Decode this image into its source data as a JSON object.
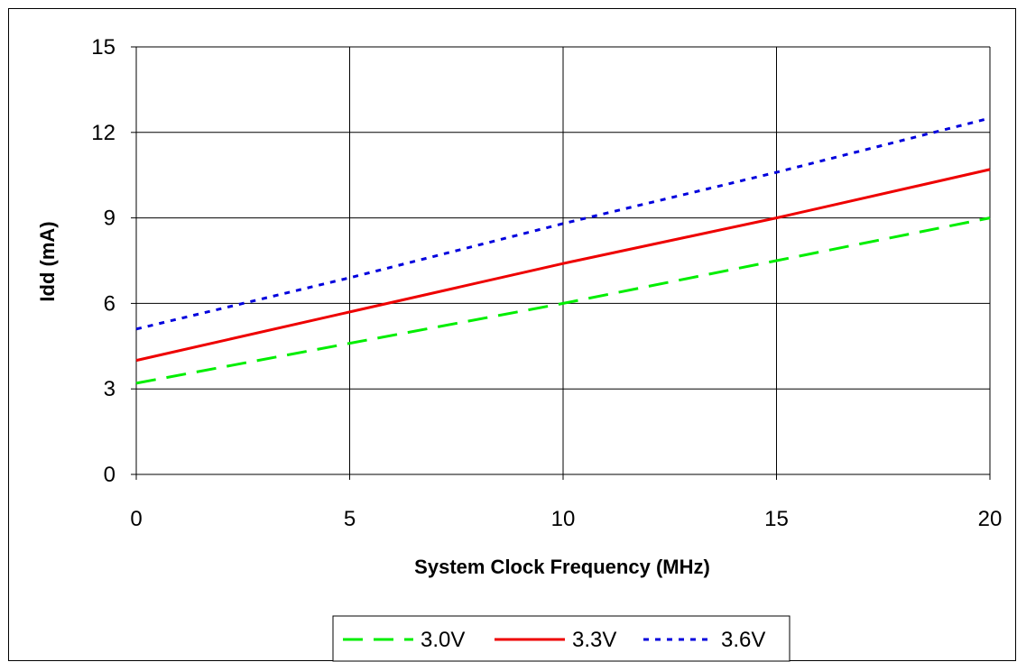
{
  "chart_data": {
    "type": "line",
    "title": "",
    "xlabel": "System Clock Frequency (MHz)",
    "ylabel": "Idd (mA)",
    "xlim": [
      0,
      20
    ],
    "ylim": [
      0,
      15
    ],
    "x_ticks": [
      "0",
      "5",
      "10",
      "15",
      "20"
    ],
    "y_ticks": [
      "0",
      "3",
      "6",
      "9",
      "12",
      "15"
    ],
    "grid": true,
    "legend_position": "bottom",
    "x": [
      0,
      5,
      10,
      15,
      20
    ],
    "series": [
      {
        "name": "3.0V",
        "values": [
          3.2,
          4.6,
          6.0,
          7.5,
          9.0
        ],
        "color": "#00ee00",
        "dash": "long-dash"
      },
      {
        "name": "3.3V",
        "values": [
          4.0,
          5.7,
          7.4,
          9.0,
          10.7
        ],
        "color": "#ee0000",
        "dash": "solid"
      },
      {
        "name": "3.6V",
        "values": [
          5.1,
          6.9,
          8.8,
          10.6,
          12.5
        ],
        "color": "#0000dd",
        "dash": "dotted"
      }
    ]
  }
}
